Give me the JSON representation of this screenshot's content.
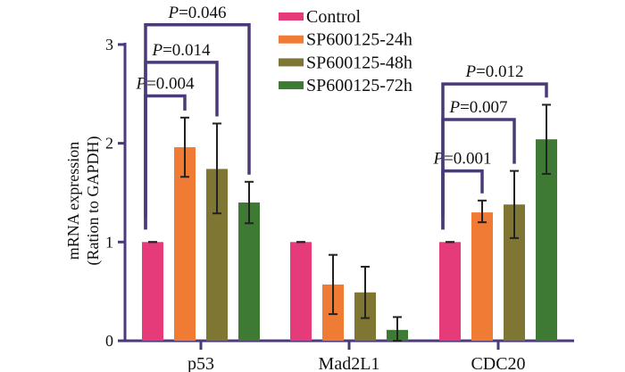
{
  "chart_data": {
    "type": "bar",
    "title": "",
    "xlabel": "",
    "ylabel": [
      "mRNA expression",
      "(Ration to GAPDH)"
    ],
    "ylim": [
      0,
      3
    ],
    "yticks": [
      "0",
      "1",
      "2",
      "3"
    ],
    "categories": [
      "p53",
      "Mad2L1",
      "CDC20"
    ],
    "legend_position": "top-center",
    "series": [
      {
        "name": "Control",
        "color": "#e63b7a",
        "values": [
          1.0,
          1.0,
          1.0
        ],
        "err_low": [
          1.0,
          1.0,
          1.0
        ],
        "err_high": [
          1.0,
          1.0,
          1.0
        ]
      },
      {
        "name": "SP600125-24h",
        "color": "#f07b35",
        "values": [
          1.96,
          0.57,
          1.3
        ],
        "err_low": [
          1.66,
          0.27,
          1.2
        ],
        "err_high": [
          2.26,
          0.87,
          1.42
        ]
      },
      {
        "name": "SP600125-48h",
        "color": "#7f7634",
        "values": [
          1.74,
          0.49,
          1.38
        ],
        "err_low": [
          1.29,
          0.23,
          1.04
        ],
        "err_high": [
          2.2,
          0.75,
          1.72
        ]
      },
      {
        "name": "SP600125-72h",
        "color": "#3f7a35",
        "values": [
          1.4,
          0.11,
          2.04
        ],
        "err_low": [
          1.19,
          0.0,
          1.69
        ],
        "err_high": [
          1.61,
          0.24,
          2.39
        ]
      }
    ],
    "annotations": [
      {
        "category": 0,
        "from": 0,
        "to": 1,
        "label_prefix": "P",
        "label_value": "=0.004",
        "y": 2.48
      },
      {
        "category": 0,
        "from": 0,
        "to": 2,
        "label_prefix": "P",
        "label_value": "=0.014",
        "y": 2.82
      },
      {
        "category": 0,
        "from": 0,
        "to": 3,
        "label_prefix": "P",
        "label_value": "=0.046",
        "y": 3.2
      },
      {
        "category": 2,
        "from": 0,
        "to": 1,
        "label_prefix": "P",
        "label_value": "=0.001",
        "y": 1.72
      },
      {
        "category": 2,
        "from": 0,
        "to": 2,
        "label_prefix": "P",
        "label_value": "=0.007",
        "y": 2.24
      },
      {
        "category": 2,
        "from": 0,
        "to": 3,
        "label_prefix": "P",
        "label_value": "=0.012",
        "y": 2.6
      }
    ],
    "axis_color": "#4b3a78"
  }
}
